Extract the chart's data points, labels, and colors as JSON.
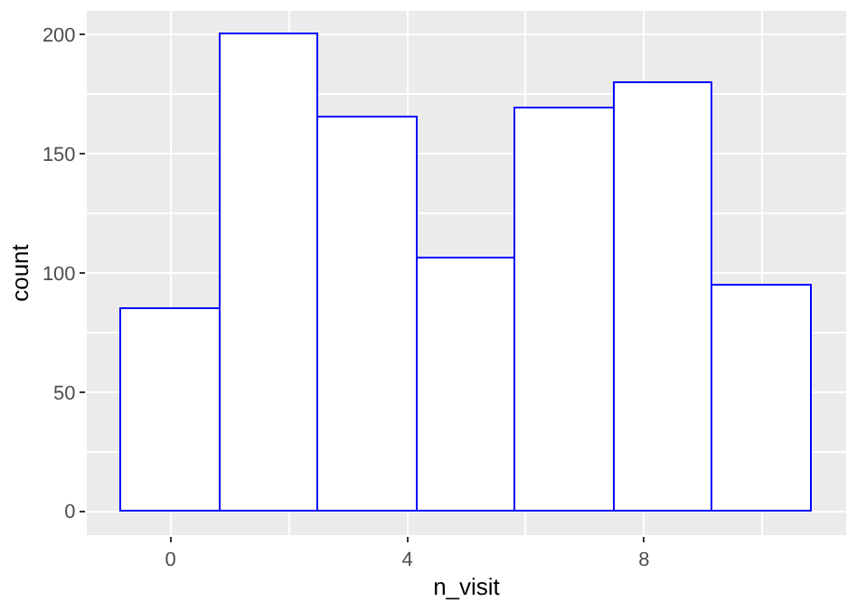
{
  "chart_data": {
    "type": "histogram",
    "xlabel": "n_visit",
    "ylabel": "count",
    "bins": [
      -0.833,
      0.833,
      2.5,
      4.167,
      5.833,
      7.5,
      9.167,
      10.833
    ],
    "values": [
      85,
      200,
      165,
      106,
      169,
      180,
      95
    ],
    "color": "#0000ff",
    "xlim": [
      -1.417,
      11.417
    ],
    "xticks": [
      0,
      4,
      8
    ],
    "ylim": [
      -10,
      210
    ],
    "yticks": [
      0,
      50,
      100,
      150,
      200
    ],
    "grid": true
  }
}
